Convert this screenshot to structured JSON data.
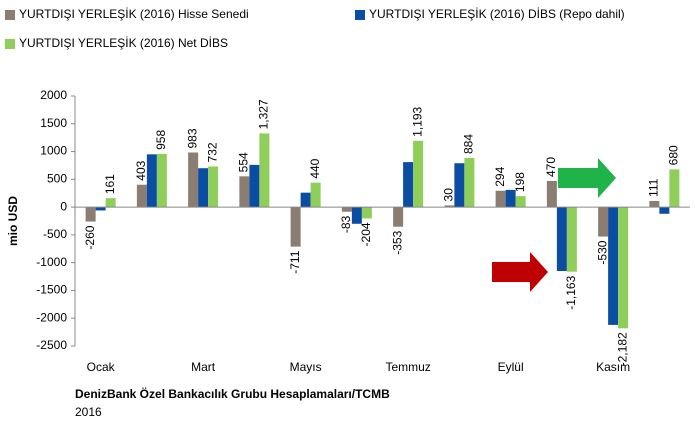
{
  "chart_data": {
    "type": "bar",
    "categories": [
      "Ocak",
      null,
      "Mart",
      null,
      "Mayıs",
      null,
      "Temmuz",
      null,
      "Eylül",
      null,
      "Kasım",
      null
    ],
    "series": [
      {
        "name": "YURTDIŞI YERLEŞİK (2016) Hisse Senedi",
        "color": "#8b7d72",
        "data_labels": true,
        "values": [
          -260,
          403,
          983,
          554,
          -711,
          -83,
          -353,
          30,
          294,
          470,
          -530,
          111
        ]
      },
      {
        "name": "YURTDIŞI YERLEŞİK (2016) DİBS (Repo dahil)",
        "color": "#0a4da2",
        "data_labels": false,
        "values": [
          -60,
          950,
          700,
          760,
          260,
          -300,
          810,
          790,
          310,
          -1150,
          -2120,
          -120
        ]
      },
      {
        "name": "YURTDIŞI YERLEŞİK (2016) Net DİBS",
        "color": "#8fce5a",
        "data_labels": true,
        "values": [
          161,
          958,
          732,
          1327,
          440,
          -204,
          1193,
          884,
          198,
          -1163,
          -2182,
          680
        ],
        "value_labels": [
          "161",
          "958",
          "732",
          "1,327",
          "440",
          "-204",
          "1,193",
          "884",
          "198",
          "-1,163",
          "-2,182",
          "680"
        ]
      }
    ],
    "ylabel": "mio USD",
    "ylim": [
      -2500,
      2000
    ],
    "yticks": [
      -2500,
      -2000,
      -1500,
      -1000,
      -500,
      0,
      500,
      1000,
      1500,
      2000
    ],
    "source": "DenizBank Özel Bankacılık  Grubu Hesaplamaları/TCMB",
    "note": "2016"
  }
}
